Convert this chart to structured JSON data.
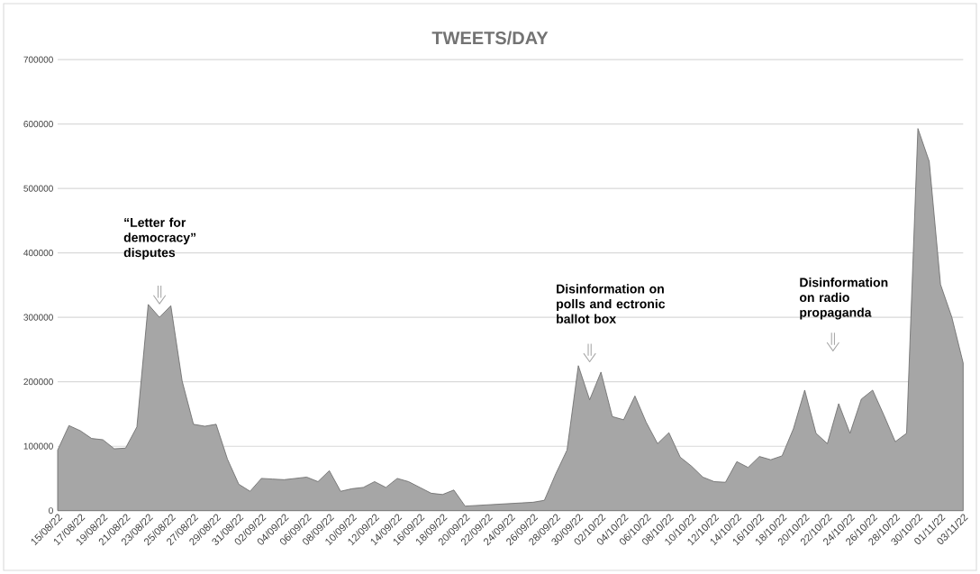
{
  "chart_data": {
    "type": "area",
    "title": "TWEETS/DAY",
    "categories": [
      "15/08/22",
      null,
      "17/08/22",
      null,
      "19/08/22",
      null,
      "21/08/22",
      null,
      "23/08/22",
      null,
      "25/08/22",
      null,
      "27/08/22",
      null,
      "29/08/22",
      null,
      "31/08/22",
      null,
      "02/09/22",
      null,
      "04/09/22",
      null,
      "06/09/22",
      null,
      "08/09/22",
      null,
      "10/09/22",
      null,
      "12/09/22",
      null,
      "14/09/22",
      null,
      "16/09/22",
      null,
      "18/09/22",
      null,
      "20/09/22",
      null,
      "22/09/22",
      null,
      "24/09/22",
      null,
      "26/09/22",
      null,
      "28/09/22",
      null,
      "30/09/22",
      null,
      "02/10/22",
      null,
      "04/10/22",
      null,
      "06/10/22",
      null,
      "08/10/22",
      null,
      "10/10/22",
      null,
      "12/10/22",
      null,
      "14/10/22",
      null,
      "16/10/22",
      null,
      "18/10/22",
      null,
      "20/10/22",
      null,
      "22/10/22",
      null,
      "24/10/22",
      null,
      "26/10/22",
      null,
      "28/10/22",
      null,
      "30/10/22",
      null,
      "01/11/22",
      null,
      "03/11/22"
    ],
    "values": [
      94000,
      132000,
      124000,
      112000,
      110000,
      96000,
      97000,
      130000,
      320000,
      300000,
      318000,
      201000,
      134000,
      131000,
      134000,
      80000,
      41000,
      30000,
      50000,
      49000,
      48000,
      50000,
      52000,
      45000,
      62000,
      30000,
      34000,
      36000,
      45000,
      36000,
      50000,
      45000,
      36000,
      27000,
      25000,
      32000,
      7000,
      8000,
      9000,
      10000,
      11000,
      12000,
      13000,
      16000,
      57000,
      94000,
      225000,
      172000,
      215000,
      146000,
      141000,
      178000,
      137000,
      104000,
      121000,
      83000,
      69000,
      52000,
      45000,
      44000,
      76000,
      67000,
      84000,
      79000,
      85000,
      127000,
      187000,
      120000,
      104000,
      166000,
      120000,
      173000,
      187000,
      148000,
      107000,
      120000,
      593000,
      542000,
      351000,
      300000,
      229000
    ],
    "color": "#a6a6a6",
    "ylim": [
      0,
      700000
    ],
    "yticks": [
      0,
      100000,
      200000,
      300000,
      400000,
      500000,
      600000,
      700000
    ],
    "grid": "y",
    "annotations": [
      "“Letter for democracy” disputes",
      "Disinformation on polls and ectronic ballot box",
      "Disinformation on radio propaganda"
    ]
  }
}
